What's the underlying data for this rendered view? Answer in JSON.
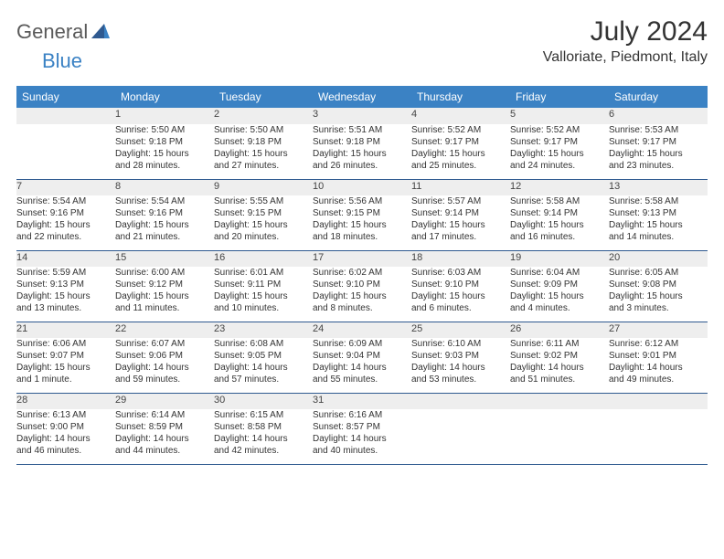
{
  "brand": {
    "part1": "General",
    "part2": "Blue"
  },
  "title": "July 2024",
  "location": "Valloriate, Piedmont, Italy",
  "colors": {
    "header_bg": "#3b82c4",
    "header_text": "#ffffff",
    "row_border": "#2f5a90",
    "day_bg": "#eeeeee",
    "text": "#333333",
    "logo_gray": "#5a5a5a",
    "logo_blue": "#3b82c4"
  },
  "weekdays": [
    "Sunday",
    "Monday",
    "Tuesday",
    "Wednesday",
    "Thursday",
    "Friday",
    "Saturday"
  ],
  "weeks": [
    [
      null,
      {
        "n": "1",
        "sr": "Sunrise: 5:50 AM",
        "ss": "Sunset: 9:18 PM",
        "d1": "Daylight: 15 hours",
        "d2": "and 28 minutes."
      },
      {
        "n": "2",
        "sr": "Sunrise: 5:50 AM",
        "ss": "Sunset: 9:18 PM",
        "d1": "Daylight: 15 hours",
        "d2": "and 27 minutes."
      },
      {
        "n": "3",
        "sr": "Sunrise: 5:51 AM",
        "ss": "Sunset: 9:18 PM",
        "d1": "Daylight: 15 hours",
        "d2": "and 26 minutes."
      },
      {
        "n": "4",
        "sr": "Sunrise: 5:52 AM",
        "ss": "Sunset: 9:17 PM",
        "d1": "Daylight: 15 hours",
        "d2": "and 25 minutes."
      },
      {
        "n": "5",
        "sr": "Sunrise: 5:52 AM",
        "ss": "Sunset: 9:17 PM",
        "d1": "Daylight: 15 hours",
        "d2": "and 24 minutes."
      },
      {
        "n": "6",
        "sr": "Sunrise: 5:53 AM",
        "ss": "Sunset: 9:17 PM",
        "d1": "Daylight: 15 hours",
        "d2": "and 23 minutes."
      }
    ],
    [
      {
        "n": "7",
        "sr": "Sunrise: 5:54 AM",
        "ss": "Sunset: 9:16 PM",
        "d1": "Daylight: 15 hours",
        "d2": "and 22 minutes."
      },
      {
        "n": "8",
        "sr": "Sunrise: 5:54 AM",
        "ss": "Sunset: 9:16 PM",
        "d1": "Daylight: 15 hours",
        "d2": "and 21 minutes."
      },
      {
        "n": "9",
        "sr": "Sunrise: 5:55 AM",
        "ss": "Sunset: 9:15 PM",
        "d1": "Daylight: 15 hours",
        "d2": "and 20 minutes."
      },
      {
        "n": "10",
        "sr": "Sunrise: 5:56 AM",
        "ss": "Sunset: 9:15 PM",
        "d1": "Daylight: 15 hours",
        "d2": "and 18 minutes."
      },
      {
        "n": "11",
        "sr": "Sunrise: 5:57 AM",
        "ss": "Sunset: 9:14 PM",
        "d1": "Daylight: 15 hours",
        "d2": "and 17 minutes."
      },
      {
        "n": "12",
        "sr": "Sunrise: 5:58 AM",
        "ss": "Sunset: 9:14 PM",
        "d1": "Daylight: 15 hours",
        "d2": "and 16 minutes."
      },
      {
        "n": "13",
        "sr": "Sunrise: 5:58 AM",
        "ss": "Sunset: 9:13 PM",
        "d1": "Daylight: 15 hours",
        "d2": "and 14 minutes."
      }
    ],
    [
      {
        "n": "14",
        "sr": "Sunrise: 5:59 AM",
        "ss": "Sunset: 9:13 PM",
        "d1": "Daylight: 15 hours",
        "d2": "and 13 minutes."
      },
      {
        "n": "15",
        "sr": "Sunrise: 6:00 AM",
        "ss": "Sunset: 9:12 PM",
        "d1": "Daylight: 15 hours",
        "d2": "and 11 minutes."
      },
      {
        "n": "16",
        "sr": "Sunrise: 6:01 AM",
        "ss": "Sunset: 9:11 PM",
        "d1": "Daylight: 15 hours",
        "d2": "and 10 minutes."
      },
      {
        "n": "17",
        "sr": "Sunrise: 6:02 AM",
        "ss": "Sunset: 9:10 PM",
        "d1": "Daylight: 15 hours",
        "d2": "and 8 minutes."
      },
      {
        "n": "18",
        "sr": "Sunrise: 6:03 AM",
        "ss": "Sunset: 9:10 PM",
        "d1": "Daylight: 15 hours",
        "d2": "and 6 minutes."
      },
      {
        "n": "19",
        "sr": "Sunrise: 6:04 AM",
        "ss": "Sunset: 9:09 PM",
        "d1": "Daylight: 15 hours",
        "d2": "and 4 minutes."
      },
      {
        "n": "20",
        "sr": "Sunrise: 6:05 AM",
        "ss": "Sunset: 9:08 PM",
        "d1": "Daylight: 15 hours",
        "d2": "and 3 minutes."
      }
    ],
    [
      {
        "n": "21",
        "sr": "Sunrise: 6:06 AM",
        "ss": "Sunset: 9:07 PM",
        "d1": "Daylight: 15 hours",
        "d2": "and 1 minute."
      },
      {
        "n": "22",
        "sr": "Sunrise: 6:07 AM",
        "ss": "Sunset: 9:06 PM",
        "d1": "Daylight: 14 hours",
        "d2": "and 59 minutes."
      },
      {
        "n": "23",
        "sr": "Sunrise: 6:08 AM",
        "ss": "Sunset: 9:05 PM",
        "d1": "Daylight: 14 hours",
        "d2": "and 57 minutes."
      },
      {
        "n": "24",
        "sr": "Sunrise: 6:09 AM",
        "ss": "Sunset: 9:04 PM",
        "d1": "Daylight: 14 hours",
        "d2": "and 55 minutes."
      },
      {
        "n": "25",
        "sr": "Sunrise: 6:10 AM",
        "ss": "Sunset: 9:03 PM",
        "d1": "Daylight: 14 hours",
        "d2": "and 53 minutes."
      },
      {
        "n": "26",
        "sr": "Sunrise: 6:11 AM",
        "ss": "Sunset: 9:02 PM",
        "d1": "Daylight: 14 hours",
        "d2": "and 51 minutes."
      },
      {
        "n": "27",
        "sr": "Sunrise: 6:12 AM",
        "ss": "Sunset: 9:01 PM",
        "d1": "Daylight: 14 hours",
        "d2": "and 49 minutes."
      }
    ],
    [
      {
        "n": "28",
        "sr": "Sunrise: 6:13 AM",
        "ss": "Sunset: 9:00 PM",
        "d1": "Daylight: 14 hours",
        "d2": "and 46 minutes."
      },
      {
        "n": "29",
        "sr": "Sunrise: 6:14 AM",
        "ss": "Sunset: 8:59 PM",
        "d1": "Daylight: 14 hours",
        "d2": "and 44 minutes."
      },
      {
        "n": "30",
        "sr": "Sunrise: 6:15 AM",
        "ss": "Sunset: 8:58 PM",
        "d1": "Daylight: 14 hours",
        "d2": "and 42 minutes."
      },
      {
        "n": "31",
        "sr": "Sunrise: 6:16 AM",
        "ss": "Sunset: 8:57 PM",
        "d1": "Daylight: 14 hours",
        "d2": "and 40 minutes."
      },
      null,
      null,
      null
    ]
  ]
}
